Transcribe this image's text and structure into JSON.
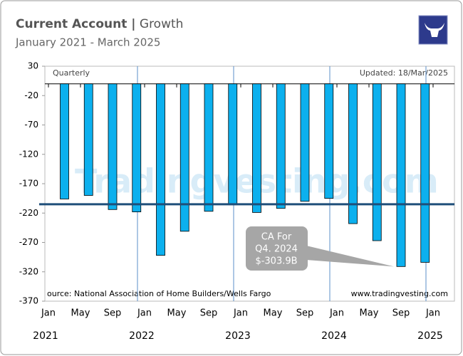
{
  "chart_data": {
    "type": "bar",
    "title": "Current Account |",
    "title_suffix": "Growth",
    "subtitle": "January 2021 - March 2025",
    "frequency_label": "Quarterly",
    "updated_label": "Updated: 18/Mar/2025",
    "source": "ource: National Association of Home Builders/Wells Fargo",
    "website": "www.tradingvesting.com",
    "watermark": "Tradingvesting.com",
    "x": [
      "2021-03",
      "2021-06",
      "2021-09",
      "2021-12",
      "2022-03",
      "2022-06",
      "2022-09",
      "2022-12",
      "2023-03",
      "2023-06",
      "2023-09",
      "2023-12",
      "2024-03",
      "2024-06",
      "2024-09",
      "2024-12"
    ],
    "values": [
      -196,
      -190,
      -214,
      -218,
      -292,
      -251,
      -217,
      -206,
      -219,
      -212,
      -200,
      -195,
      -238,
      -267,
      -311,
      -303.9
    ],
    "color": "#0cb0ee",
    "average_line": -205,
    "average_color": "#1f4e79",
    "annotation": [
      "CA  For",
      "Q4. 2024",
      "$-303.9B"
    ],
    "xlim": [
      "2021-01",
      "2025-03"
    ],
    "xticks": [
      {
        "value": "2021-01",
        "label": "Jan"
      },
      {
        "value": "2021-05",
        "label": "May"
      },
      {
        "value": "2021-09",
        "label": "Sep"
      },
      {
        "value": "2022-01",
        "label": "Jan"
      },
      {
        "value": "2022-05",
        "label": "May"
      },
      {
        "value": "2022-09",
        "label": "Sep"
      },
      {
        "value": "2023-01",
        "label": "Jan"
      },
      {
        "value": "2023-05",
        "label": "May"
      },
      {
        "value": "2023-09",
        "label": "Sep"
      },
      {
        "value": "2024-01",
        "label": "Jan"
      },
      {
        "value": "2024-05",
        "label": "May"
      },
      {
        "value": "2024-09",
        "label": "Sep"
      },
      {
        "value": "2025-01",
        "label": "Jan"
      }
    ],
    "year_ticks": [
      {
        "value": "2021-01",
        "label": "2021"
      },
      {
        "value": "2022-01",
        "label": "2022"
      },
      {
        "value": "2023-01",
        "label": "2023"
      },
      {
        "value": "2024-01",
        "label": "2024"
      },
      {
        "value": "2025-01",
        "label": "2025"
      }
    ],
    "ylim": [
      -370,
      30
    ],
    "yticks": [
      30,
      -20,
      -70,
      -120,
      -170,
      -220,
      -270,
      -320,
      -370
    ],
    "grid": false
  }
}
